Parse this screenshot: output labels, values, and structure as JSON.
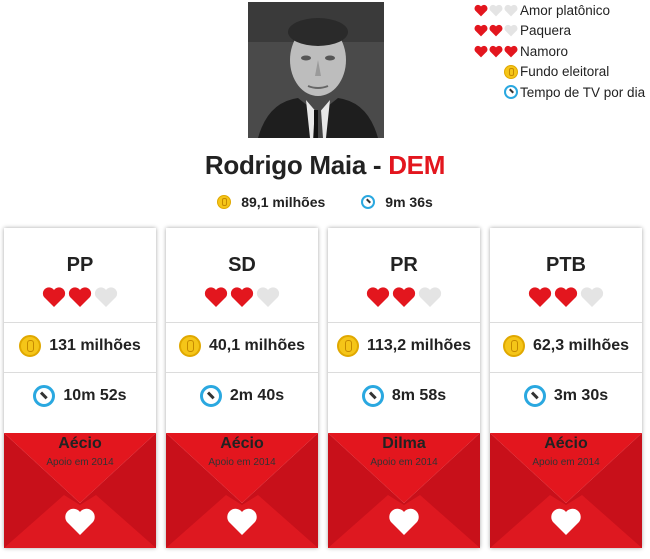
{
  "legend": [
    {
      "hearts": [
        "red",
        "gray",
        "gray"
      ],
      "label": "Amor platônico"
    },
    {
      "hearts": [
        "red",
        "red",
        "gray"
      ],
      "label": "Paquera"
    },
    {
      "hearts": [
        "red",
        "red",
        "red"
      ],
      "label": "Namoro"
    },
    {
      "icon": "coin-icon",
      "label": "Fundo eleitoral"
    },
    {
      "icon": "clock-icon",
      "label": "Tempo de TV por dia"
    }
  ],
  "candidate": {
    "name": "Rodrigo Maia - ",
    "party": "DEM",
    "fund": "89,1 milhões",
    "tv_time": "9m 36s"
  },
  "cards": [
    {
      "party": "PP",
      "hearts": 2,
      "fund": "131 milhões",
      "tv_time": "10m 52s",
      "support": "Aécio",
      "support_label": "Apoio em 2014"
    },
    {
      "party": "SD",
      "hearts": 2,
      "fund": "40,1 milhões",
      "tv_time": "2m 40s",
      "support": "Aécio",
      "support_label": "Apoio em 2014"
    },
    {
      "party": "PR",
      "hearts": 2,
      "fund": "113,2 milhões",
      "tv_time": "8m 58s",
      "support": "Dilma",
      "support_label": "Apoio em 2014"
    },
    {
      "party": "PTB",
      "hearts": 2,
      "fund": "62,3 milhões",
      "tv_time": "3m 30s",
      "support": "Aécio",
      "support_label": "Apoio em 2014"
    }
  ],
  "colors": {
    "accent": "#e3161e",
    "heart_gray": "#e4e4e4",
    "coin": "#f5c518",
    "clock": "#2aa8e0"
  }
}
